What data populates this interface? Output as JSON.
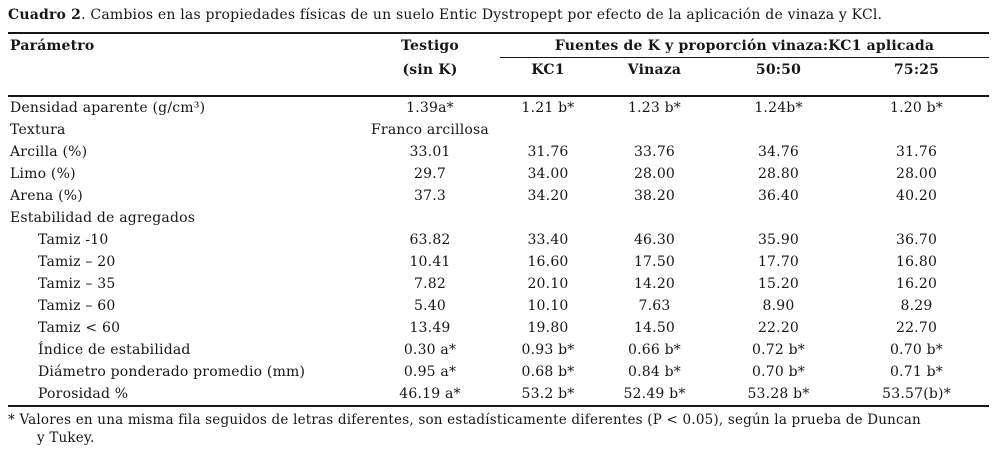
{
  "title": {
    "label": "Cuadro 2",
    "text": ". Cambios en las propiedades físicas de un suelo Entic Dystropept por efecto de la aplicación de vinaza y KCl."
  },
  "header": {
    "param": "Parámetro",
    "testigo_line1": "Testigo",
    "testigo_line2": "(sin K)",
    "spanner": "Fuentes de K y proporción vinaza:KC1 aplicada",
    "columns": [
      "KC1",
      "Vinaza",
      "50:50",
      "75:25"
    ]
  },
  "table": {
    "rows": [
      {
        "param": "Densidad aparente (g/cm³)",
        "values": [
          "1.39a*",
          "1.21 b*",
          "1.23 b*",
          "1.24b*",
          "1.20 b*"
        ]
      },
      {
        "param": "Textura",
        "values": [
          "Franco arcillosa",
          "",
          "",
          "",
          ""
        ]
      },
      {
        "param": "Arcilla (%)",
        "values": [
          "33.01",
          "31.76",
          "33.76",
          "34.76",
          "31.76"
        ]
      },
      {
        "param": "Limo (%)",
        "values": [
          "29.7",
          "34.00",
          "28.00",
          "28.80",
          "28.00"
        ]
      },
      {
        "param": "Arena (%)",
        "values": [
          "37.3",
          "34.20",
          "38.20",
          "36.40",
          "40.20"
        ]
      },
      {
        "param": "Estabilidad de agregados",
        "values": [
          "",
          "",
          "",
          "",
          ""
        ]
      },
      {
        "param": "Tamiz -10",
        "values": [
          "63.82",
          "33.40",
          "46.30",
          "35.90",
          "36.70"
        ]
      },
      {
        "param": "Tamiz – 20",
        "values": [
          "10.41",
          "16.60",
          "17.50",
          "17.70",
          "16.80"
        ]
      },
      {
        "param": "Tamiz – 35",
        "values": [
          "7.82",
          "20.10",
          "14.20",
          "15.20",
          "16.20"
        ]
      },
      {
        "param": "Tamiz – 60",
        "values": [
          "5.40",
          "10.10",
          "7.63",
          "8.90",
          "8.29"
        ]
      },
      {
        "param": "Tamiz < 60",
        "values": [
          "13.49",
          "19.80",
          "14.50",
          "22.20",
          "22.70"
        ]
      },
      {
        "param": "Índice de estabilidad",
        "values": [
          "0.30 a*",
          "0.93 b*",
          "0.66 b*",
          "0.72 b*",
          "0.70 b*"
        ]
      },
      {
        "param": "Diámetro ponderado promedio (mm)",
        "values": [
          "0.95 a*",
          "0.68 b*",
          "0.84 b*",
          "0.70 b*",
          "0.71 b*"
        ]
      },
      {
        "param": "Porosidad %",
        "values": [
          "46.19 a*",
          "53.2 b*",
          "52.49 b*",
          "53.28 b*",
          "53.57(b)*"
        ]
      }
    ]
  },
  "footnote": {
    "marker": "*",
    "line1": "Valores en una misma fila seguidos de letras diferentes, son estadísticamente diferentes (P < 0.05), según la prueba de Duncan",
    "line2": "y Tukey."
  }
}
